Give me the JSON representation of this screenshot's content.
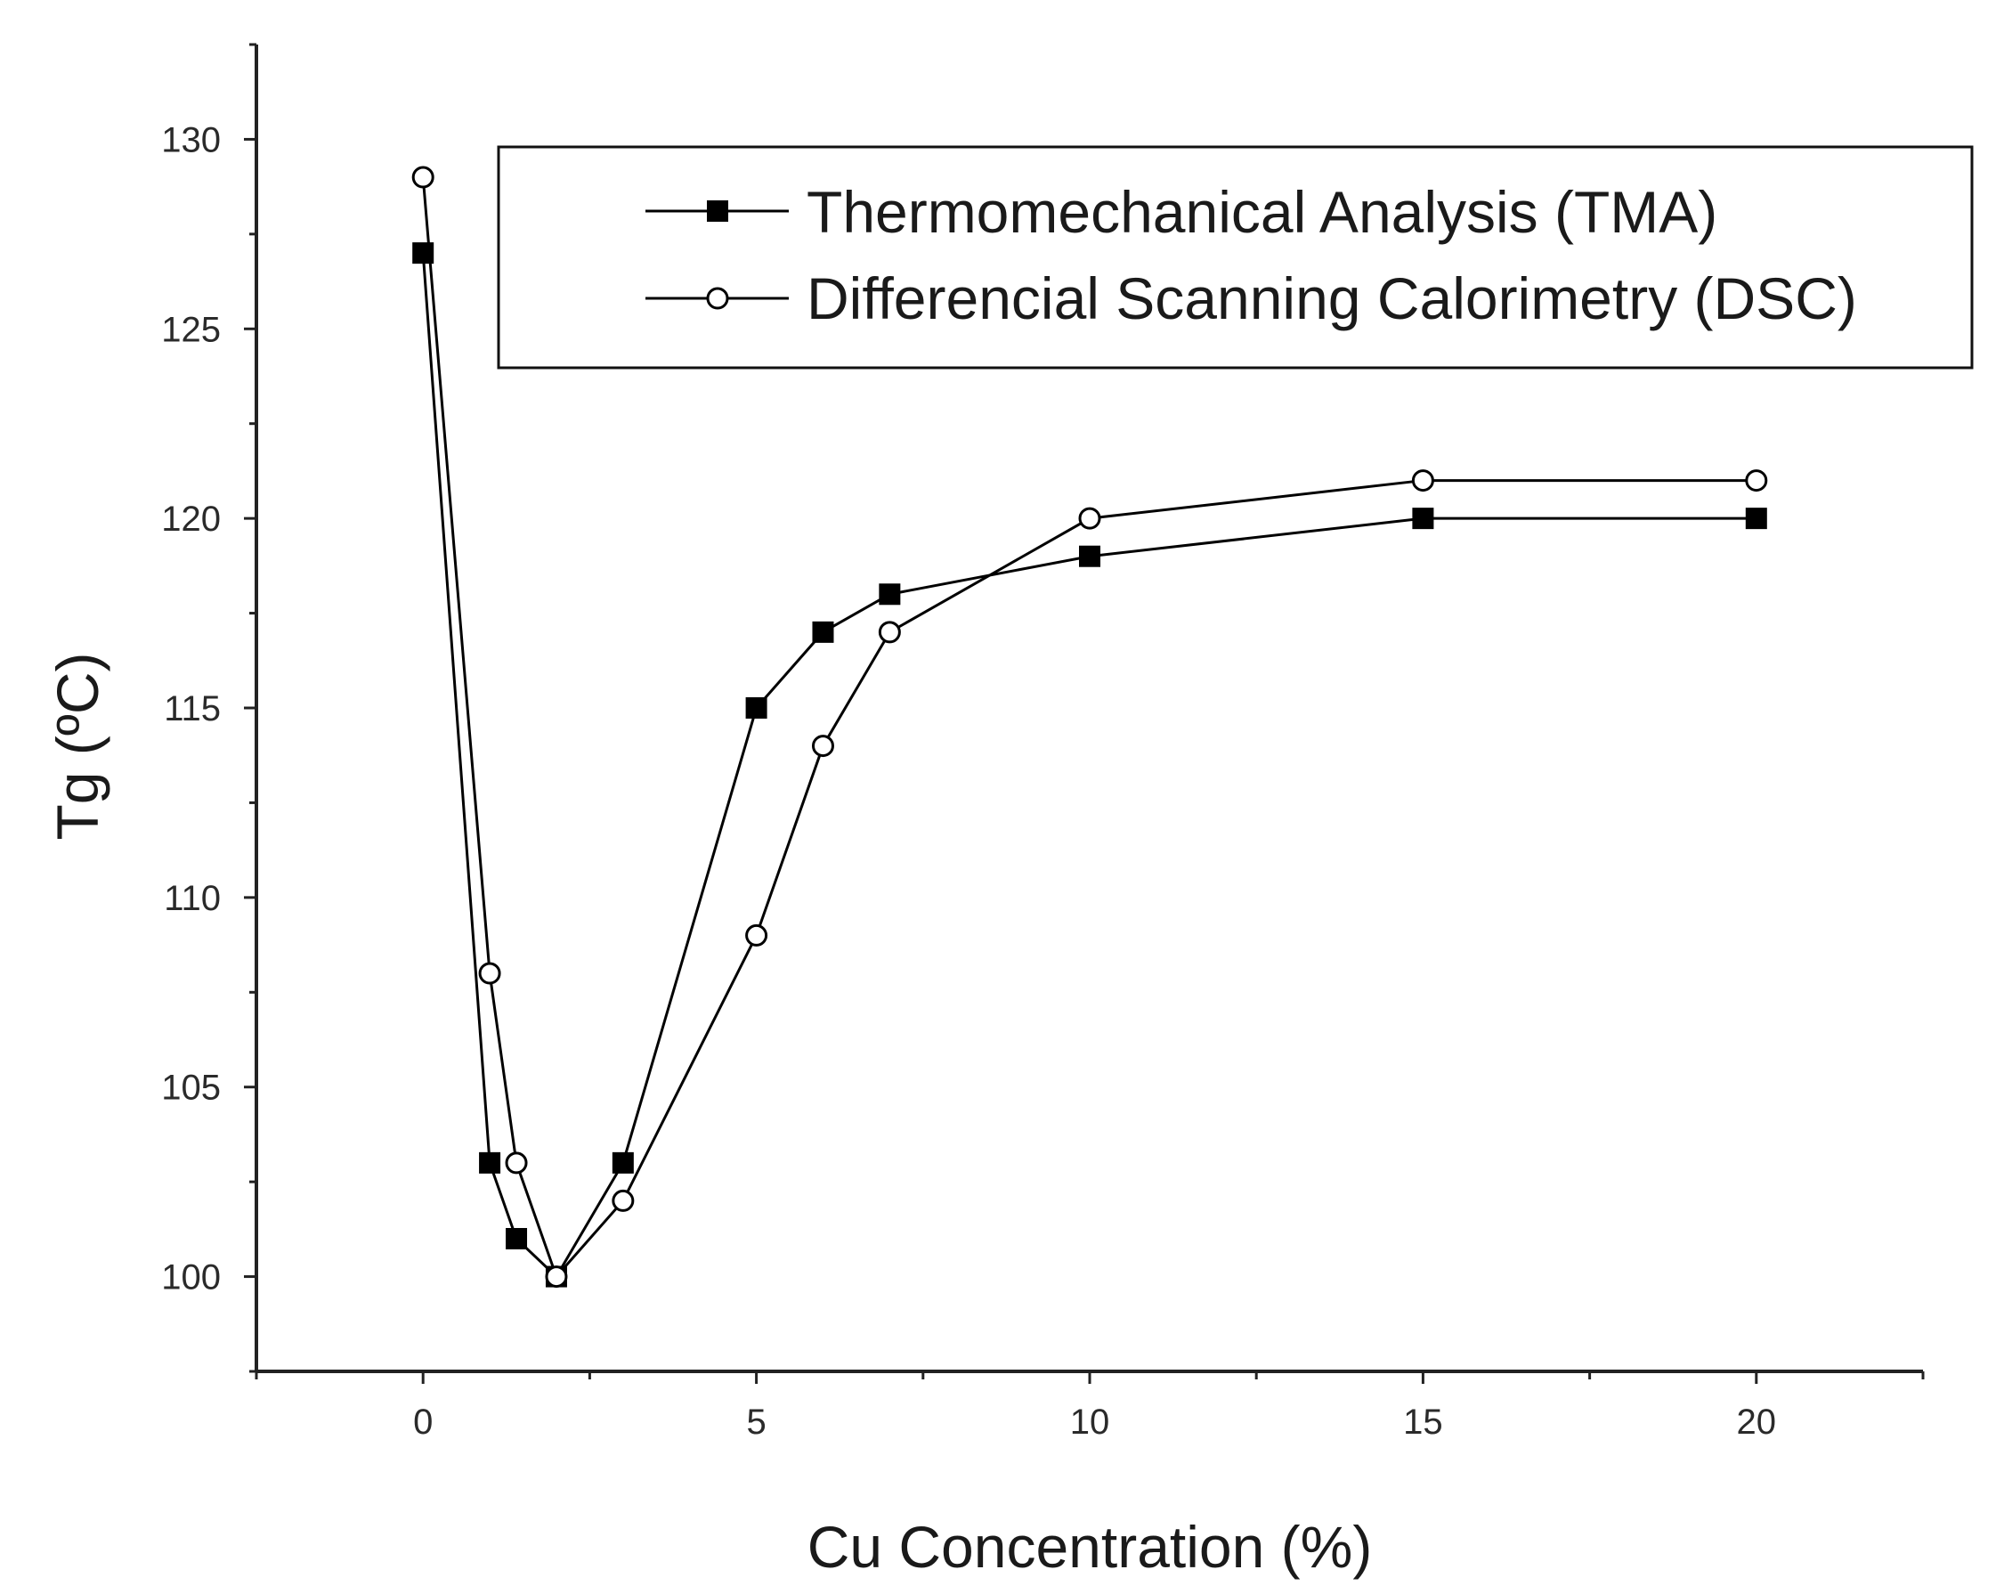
{
  "chart_data": {
    "type": "line",
    "title": "",
    "xlabel": "Cu Concentration (%)",
    "ylabel": "Tg (ºC)",
    "xlim": [
      -2.5,
      22.5
    ],
    "ylim": [
      97.5,
      132.5
    ],
    "x_ticks": [
      0,
      5,
      10,
      15,
      20
    ],
    "y_ticks": [
      100,
      105,
      110,
      115,
      120,
      125,
      130
    ],
    "x_tick_labels": [
      "0",
      "5",
      "10",
      "15",
      "20"
    ],
    "y_tick_labels": [
      "100",
      "105",
      "110",
      "115",
      "120",
      "125",
      "130"
    ],
    "legend_position": "top-right",
    "grid": false,
    "series": [
      {
        "name": "Thermomechanical Analysis (TMA)",
        "marker": "filled-square",
        "x": [
          0,
          1,
          1.4,
          2,
          3,
          5,
          6,
          7,
          10,
          15,
          20
        ],
        "y": [
          127,
          103,
          101,
          100,
          103,
          115,
          117,
          118,
          119,
          120,
          120
        ]
      },
      {
        "name": "Differencial Scanning Calorimetry (DSC)",
        "marker": "open-circle",
        "x": [
          0,
          1,
          1.4,
          2,
          3,
          5,
          6,
          7,
          10,
          15,
          20
        ],
        "y": [
          129,
          108,
          103,
          100,
          102,
          109,
          114,
          117,
          120,
          121,
          121
        ]
      }
    ],
    "colors": {
      "line": "#000000",
      "marker_fill_open": "#ffffff",
      "axis": "#222222"
    }
  }
}
